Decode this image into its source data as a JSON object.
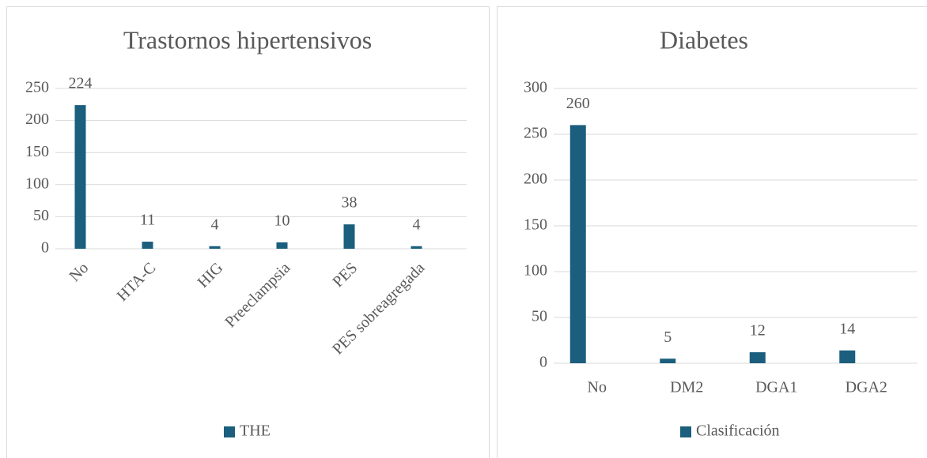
{
  "chart_data": [
    {
      "type": "bar",
      "title": "Trastornos hipertensivos",
      "categories": [
        "No",
        "HTA-C",
        "HIG",
        "Preeclampsia",
        "PES",
        "PES sobreagregada"
      ],
      "series": [
        {
          "name": "THE",
          "color": "#1b5e7e",
          "values": [
            224,
            11,
            4,
            10,
            38,
            4
          ]
        }
      ],
      "ylim": [
        0,
        250
      ],
      "yticks": [
        0,
        50,
        100,
        150,
        200,
        250
      ],
      "grid": true,
      "legend": "bottom"
    },
    {
      "type": "bar",
      "title": "Diabetes",
      "categories": [
        "No",
        "DM2",
        "DGA1",
        "DGA2"
      ],
      "series": [
        {
          "name": "Clasificación",
          "color": "#1b5e7e",
          "values": [
            260,
            5,
            12,
            14
          ]
        }
      ],
      "ylim": [
        0,
        300
      ],
      "yticks": [
        0,
        50,
        100,
        150,
        200,
        250,
        300
      ],
      "grid": true,
      "legend": "bottom"
    }
  ]
}
